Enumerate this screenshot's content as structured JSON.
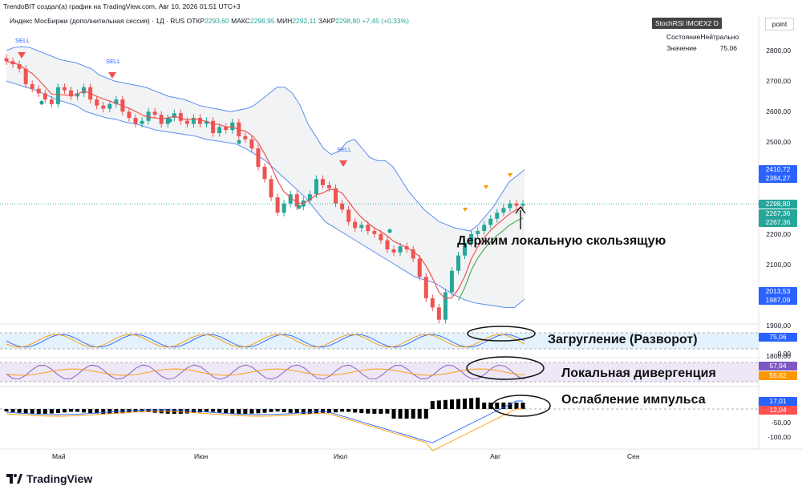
{
  "header": {
    "credit": "TrendoBIT создал(а) график на TradingView.com, Авг 10, 2026 01:51 UTC+3",
    "symbol_line": "Индекс МосБиржи (дополнительная сессия) · 1Д · RUS",
    "open_label": "ОТКР",
    "open_value": "2293,60",
    "high_label": "МАКС",
    "high_value": "2298,95",
    "low_label": "МИН",
    "low_value": "2292,11",
    "close_label": "ЗАКР",
    "close_value": "2298,80",
    "change": "+7,45 (+0,33%)"
  },
  "indicator_panel": {
    "title": "StochRSI IMOEX2 D",
    "state_label": "Состояние",
    "state_value": "Нейтрально",
    "value_label": "Значение",
    "value_value": "75.06"
  },
  "scale_button": "point",
  "price_tags": [
    {
      "text": "2410,72",
      "color": "#2962ff",
      "price": 2410.72
    },
    {
      "text": "2384,27",
      "color": "#2962ff",
      "price": 2384.27
    },
    {
      "text": "2298,80",
      "color": "#26a69a",
      "price": 2298.8
    },
    {
      "text": "2267,36",
      "color": "#26a69a",
      "price": 2267.36
    },
    {
      "text": "2267,36",
      "color": "#26a69a",
      "price": 2267.36
    },
    {
      "text": "2013,53",
      "color": "#2962ff",
      "price": 2013.53
    },
    {
      "text": "1987,09",
      "color": "#2962ff",
      "price": 1987.09
    }
  ],
  "osc_tags": [
    {
      "text": "75,06",
      "color": "#2962ff",
      "y": 420
    },
    {
      "text": "57,94",
      "color": "#7e57c2",
      "y": 456
    },
    {
      "text": "55,62",
      "color": "#ff9800",
      "y": 468
    },
    {
      "text": "17,01",
      "color": "#2962ff",
      "y": 500
    },
    {
      "text": "12,04",
      "color": "#ff5252",
      "y": 511
    }
  ],
  "price_axis_labels": [
    "2800,00",
    "2700,00",
    "2600,00",
    "2500,00",
    "2200,00",
    "2100,00",
    "1900,00",
    "1800,00"
  ],
  "osc_axis_labels": [
    {
      "text": "0,00",
      "y": 441
    },
    {
      "text": "-50,00",
      "y": 527
    },
    {
      "text": "-100,00",
      "y": 545
    }
  ],
  "x_labels": [
    {
      "text": "Май",
      "x": 65
    },
    {
      "text": "Июн",
      "x": 242
    },
    {
      "text": "Июл",
      "x": 416
    },
    {
      "text": "Авг",
      "x": 611
    },
    {
      "text": "Сен",
      "x": 782
    }
  ],
  "sell_labels": [
    {
      "text": "SELL",
      "x": 27,
      "y": 54
    },
    {
      "text": "SELL",
      "x": 140,
      "y": 80
    },
    {
      "text": "SELL",
      "x": 428,
      "y": 190
    }
  ],
  "annotations": {
    "main": "Держим локальную скользящую",
    "stoch": "Загругление (Разворот)",
    "rsi": "Локальная дивергенция",
    "macd": "Ослабление импульса"
  },
  "brand": "TradingView",
  "colors": {
    "up": "#26a69a",
    "down": "#ef5350",
    "band": "#5b8def",
    "ma": "#ef5350",
    "ma_slow": "#4caf50"
  },
  "chart_data": {
    "type": "candlestick",
    "timeframe": "1D",
    "ylim": [
      1800,
      2850
    ],
    "x_ticks": [
      "Май",
      "Июн",
      "Июл",
      "Авг",
      "Сен"
    ],
    "close": [
      2765,
      2755,
      2740,
      2690,
      2675,
      2660,
      2640,
      2625,
      2680,
      2670,
      2650,
      2660,
      2680,
      2640,
      2620,
      2610,
      2625,
      2640,
      2600,
      2580,
      2560,
      2570,
      2600,
      2590,
      2560,
      2580,
      2595,
      2570,
      2560,
      2580,
      2560,
      2570,
      2530,
      2550,
      2540,
      2565,
      2520,
      2510,
      2480,
      2420,
      2380,
      2320,
      2270,
      2300,
      2330,
      2290,
      2310,
      2330,
      2380,
      2360,
      2350,
      2300,
      2280,
      2240,
      2220,
      2230,
      2210,
      2200,
      2180,
      2150,
      2140,
      2160,
      2150,
      2120,
      2060,
      1990,
      1960,
      1920,
      2010,
      2080,
      2130,
      2170,
      2200,
      2210,
      2230,
      2250,
      2270,
      2285,
      2300,
      2293,
      2299
    ],
    "bollinger_upper": [
      2800,
      2810,
      2812,
      2810,
      2800,
      2790,
      2780,
      2770,
      2765,
      2760,
      2750,
      2740,
      2720,
      2710,
      2700,
      2695,
      2690,
      2685,
      2680,
      2670,
      2660,
      2650,
      2645,
      2640,
      2630,
      2620,
      2615,
      2610,
      2605,
      2600,
      2605,
      2610,
      2620,
      2640,
      2660,
      2680,
      2680,
      2660,
      2620,
      2560,
      2520,
      2480,
      2460,
      2470,
      2500,
      2510,
      2480,
      2450,
      2440,
      2440,
      2420,
      2380,
      2340,
      2310,
      2280,
      2260,
      2240,
      2230,
      2220,
      2215,
      2210,
      2230,
      2260,
      2290,
      2330,
      2370,
      2390,
      2410
    ],
    "bollinger_lower": [
      2700,
      2690,
      2680,
      2670,
      2655,
      2640,
      2630,
      2620,
      2600,
      2590,
      2580,
      2575,
      2565,
      2560,
      2550,
      2540,
      2535,
      2530,
      2525,
      2520,
      2510,
      2505,
      2500,
      2495,
      2480,
      2460,
      2440,
      2410,
      2380,
      2350,
      2320,
      2280,
      2240,
      2220,
      2200,
      2180,
      2160,
      2140,
      2120,
      2100,
      2080,
      2060,
      2050,
      2040,
      2020,
      2000,
      1985,
      1975,
      1970,
      1965,
      1960,
      1960,
      1987
    ],
    "stoch_rsi_k": 75.06,
    "rsi": 57.94,
    "rsi_ma": 55.62,
    "macd": [
      17.01,
      12.04
    ]
  }
}
